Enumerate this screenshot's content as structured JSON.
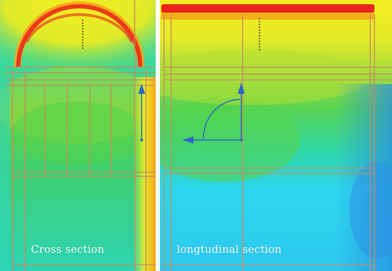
{
  "panels": [
    {
      "caption": "Cross section"
    },
    {
      "caption": "longtudinal section"
    }
  ],
  "colors": {
    "hot": "#e8241c",
    "warm": "#f6a418",
    "yellow": "#f4ee22",
    "lime": "#b2e23a",
    "green": "#4ed34a",
    "aqua": "#28dca8",
    "cyan": "#2ed6ee",
    "blue": "#2a8ee2",
    "frame": "#c58c62",
    "arrow": "#2a64c8",
    "divider": "#ffffff"
  }
}
